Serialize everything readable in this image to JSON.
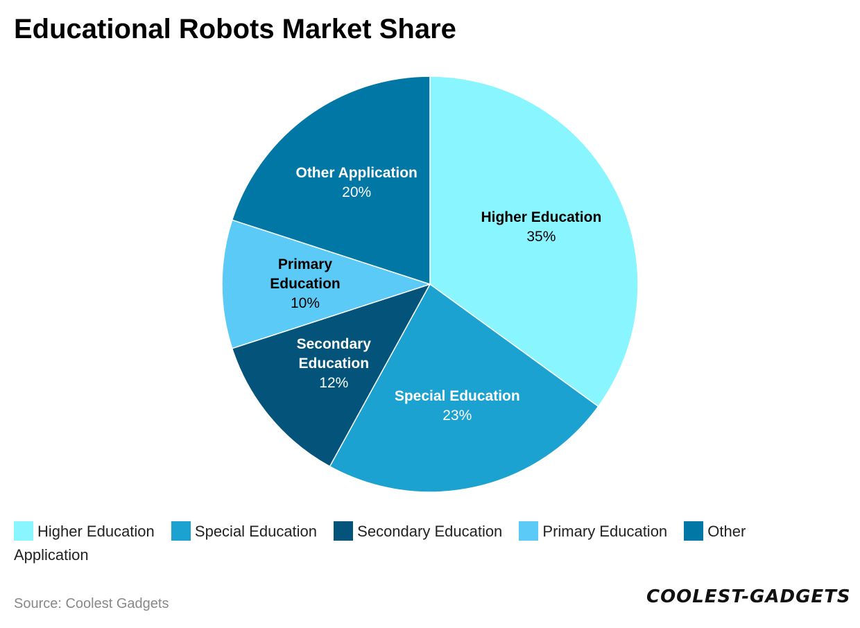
{
  "chart_data": {
    "type": "pie",
    "title": "Educational Robots Market Share",
    "categories": [
      "Higher Education",
      "Special Education",
      "Secondary Education",
      "Primary Education",
      "Other Application"
    ],
    "values": [
      35,
      23,
      12,
      10,
      20
    ],
    "value_labels": [
      "35%",
      "23%",
      "12%",
      "10%",
      "20%"
    ],
    "colors": [
      "#89f5ff",
      "#1ba2d0",
      "#03537b",
      "#5ccaf6",
      "#0077a4"
    ],
    "legend": "bottom",
    "source": "Source: Coolest Gadgets",
    "logo": "COOLEST-GADGETS"
  }
}
